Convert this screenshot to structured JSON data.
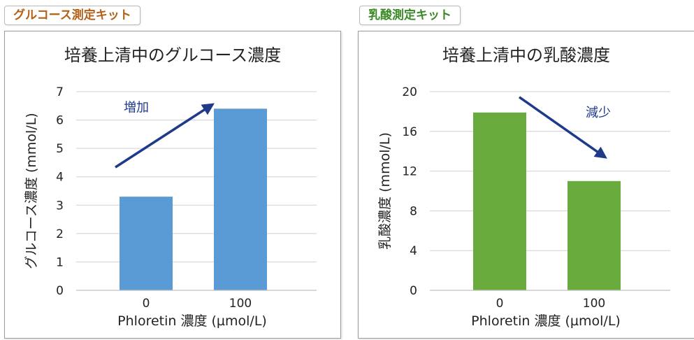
{
  "panels": [
    {
      "tag_label": "グルコース測定キット",
      "tag_color": "#b35f17",
      "chart_data": {
        "type": "bar",
        "title": "培養上清中のグルコース濃度",
        "xlabel": "Phloretin 濃度 (µmol/L)",
        "ylabel": "グルコース濃度 (mmol/L)",
        "categories": [
          "0",
          "100"
        ],
        "values": [
          3.3,
          6.4
        ],
        "ylim": [
          0,
          7
        ],
        "yticks": [
          0,
          1,
          2,
          3,
          4,
          5,
          6,
          7
        ],
        "grid": true,
        "bar_color": "#5b9bd5",
        "annotation": {
          "text": "増加",
          "direction": "up",
          "color": "#1f3a8a"
        }
      }
    },
    {
      "tag_label": "乳酸測定キット",
      "tag_color": "#3a8a25",
      "chart_data": {
        "type": "bar",
        "title": "培養上清中の乳酸濃度",
        "xlabel": "Phloretin 濃度 (µmol/L)",
        "ylabel": "乳酸濃度 (mmol/L)",
        "categories": [
          "0",
          "100"
        ],
        "values": [
          17.9,
          11.0
        ],
        "ylim": [
          0,
          20
        ],
        "yticks": [
          0,
          4,
          8,
          12,
          16,
          20
        ],
        "grid": true,
        "bar_color": "#6aab3d",
        "annotation": {
          "text": "減少",
          "direction": "down",
          "color": "#1f3a8a"
        }
      }
    }
  ]
}
